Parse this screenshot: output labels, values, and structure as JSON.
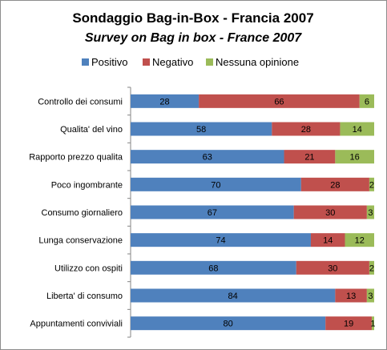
{
  "chart_data": {
    "type": "bar",
    "orientation": "horizontal",
    "stacked": true,
    "title": "Sondaggio Bag-in-Box - Francia 2007",
    "subtitle": "Survey on Bag in box - France 2007",
    "legend_position": "top",
    "xlim": [
      0,
      100
    ],
    "categories": [
      "Controllo dei consumi",
      "Qualita' del vino",
      "Rapporto prezzo qualita",
      "Poco ingombrante",
      "Consumo giornaliero",
      "Lunga conservazione",
      "Utilizzo  con ospiti",
      "Liberta' di consumo",
      "Appuntamenti conviviali"
    ],
    "series": [
      {
        "name": "Positivo",
        "color": "#4f81bd",
        "values": [
          28,
          58,
          63,
          70,
          67,
          74,
          68,
          84,
          80
        ]
      },
      {
        "name": "Negativo",
        "color": "#c0504d",
        "values": [
          66,
          28,
          21,
          28,
          30,
          14,
          30,
          13,
          19
        ]
      },
      {
        "name": "Nessuna opinione",
        "color": "#9bbb59",
        "values": [
          6,
          14,
          16,
          2,
          3,
          12,
          2,
          3,
          1
        ]
      }
    ]
  }
}
